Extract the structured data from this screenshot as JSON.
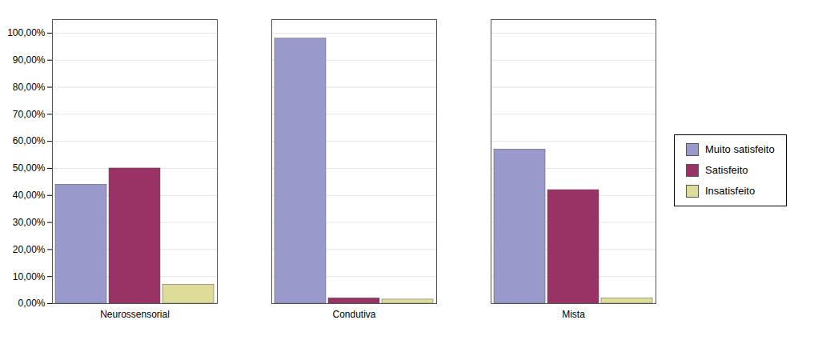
{
  "chart_data": {
    "type": "bar",
    "categories": [
      "Neurossensorial",
      "Condutiva",
      "Mista"
    ],
    "series": [
      {
        "name": "Muito satisfeito",
        "color": "#9999cc",
        "values": [
          44.0,
          98.0,
          57.0
        ]
      },
      {
        "name": "Satisfeito",
        "color": "#993366",
        "values": [
          50.0,
          2.0,
          42.0
        ]
      },
      {
        "name": "Insatisfeito",
        "color": "#dddd99",
        "values": [
          7.0,
          1.5,
          2.0
        ]
      }
    ],
    "ylim": [
      0,
      105
    ],
    "yticks": [
      {
        "value": 0,
        "label": "0,00%"
      },
      {
        "value": 10,
        "label": "10,00%"
      },
      {
        "value": 20,
        "label": "20,00%"
      },
      {
        "value": 30,
        "label": "30,00%"
      },
      {
        "value": 40,
        "label": "40,00%"
      },
      {
        "value": 50,
        "label": "50,00%"
      },
      {
        "value": 60,
        "label": "60,00%"
      },
      {
        "value": 70,
        "label": "70,00%"
      },
      {
        "value": 80,
        "label": "80,00%"
      },
      {
        "value": 90,
        "label": "90,00%"
      },
      {
        "value": 100,
        "label": "100,00%"
      }
    ],
    "grid": true,
    "legend": "right"
  }
}
